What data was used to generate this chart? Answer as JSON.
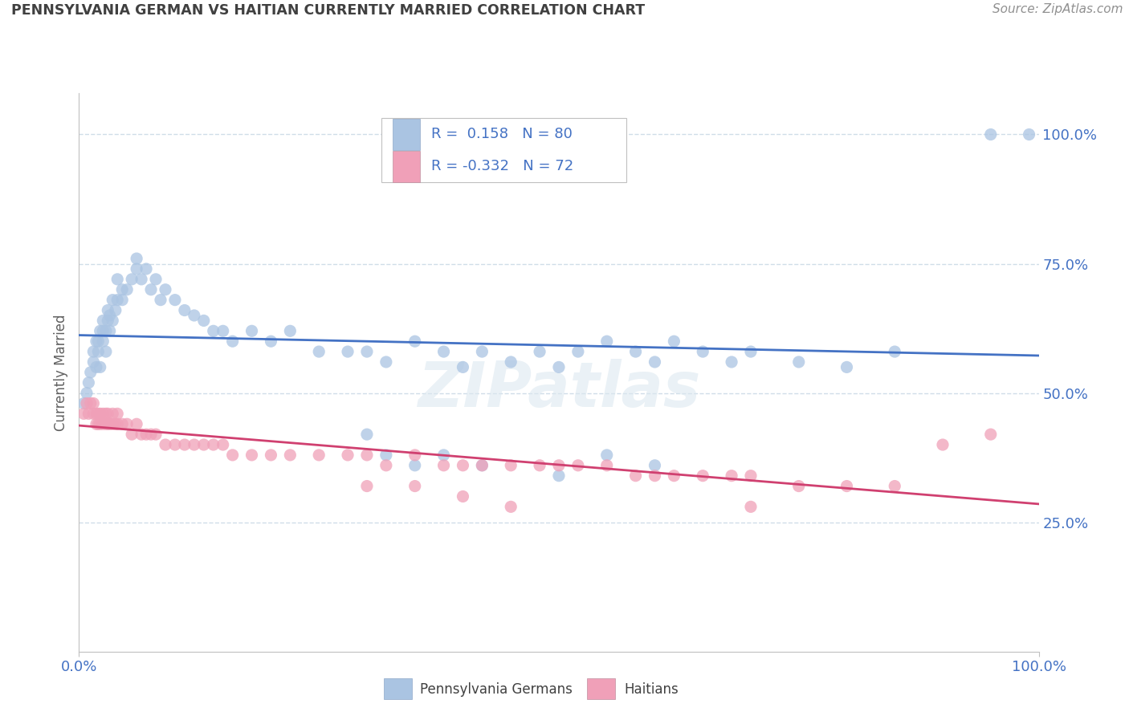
{
  "title": "PENNSYLVANIA GERMAN VS HAITIAN CURRENTLY MARRIED CORRELATION CHART",
  "source": "Source: ZipAtlas.com",
  "ylabel": "Currently Married",
  "blue_label": "Pennsylvania Germans",
  "pink_label": "Haitians",
  "blue_R": 0.158,
  "blue_N": 80,
  "pink_R": -0.332,
  "pink_N": 72,
  "blue_color": "#aac4e2",
  "pink_color": "#f0a0b8",
  "blue_line_color": "#4472c4",
  "pink_line_color": "#d04070",
  "title_color": "#404040",
  "source_color": "#909090",
  "axis_tick_color": "#4472c4",
  "grid_color": "#d0dde8",
  "ytick_labels": [
    "25.0%",
    "50.0%",
    "75.0%",
    "100.0%"
  ],
  "ytick_positions": [
    0.25,
    0.5,
    0.75,
    1.0
  ],
  "blue_scatter_x": [
    0.005,
    0.008,
    0.01,
    0.012,
    0.015,
    0.015,
    0.018,
    0.018,
    0.02,
    0.02,
    0.022,
    0.022,
    0.025,
    0.025,
    0.025,
    0.028,
    0.028,
    0.03,
    0.03,
    0.032,
    0.032,
    0.035,
    0.035,
    0.038,
    0.04,
    0.04,
    0.045,
    0.045,
    0.05,
    0.055,
    0.06,
    0.06,
    0.065,
    0.07,
    0.075,
    0.08,
    0.085,
    0.09,
    0.1,
    0.11,
    0.12,
    0.13,
    0.14,
    0.15,
    0.16,
    0.18,
    0.2,
    0.22,
    0.25,
    0.28,
    0.3,
    0.32,
    0.35,
    0.38,
    0.4,
    0.42,
    0.45,
    0.48,
    0.5,
    0.52,
    0.55,
    0.58,
    0.6,
    0.62,
    0.65,
    0.68,
    0.7,
    0.75,
    0.8,
    0.85,
    0.3,
    0.32,
    0.35,
    0.38,
    0.42,
    0.5,
    0.55,
    0.6,
    0.95,
    0.99
  ],
  "blue_scatter_y": [
    0.48,
    0.5,
    0.52,
    0.54,
    0.56,
    0.58,
    0.55,
    0.6,
    0.58,
    0.6,
    0.55,
    0.62,
    0.6,
    0.62,
    0.64,
    0.58,
    0.62,
    0.64,
    0.66,
    0.62,
    0.65,
    0.64,
    0.68,
    0.66,
    0.68,
    0.72,
    0.68,
    0.7,
    0.7,
    0.72,
    0.74,
    0.76,
    0.72,
    0.74,
    0.7,
    0.72,
    0.68,
    0.7,
    0.68,
    0.66,
    0.65,
    0.64,
    0.62,
    0.62,
    0.6,
    0.62,
    0.6,
    0.62,
    0.58,
    0.58,
    0.58,
    0.56,
    0.6,
    0.58,
    0.55,
    0.58,
    0.56,
    0.58,
    0.55,
    0.58,
    0.6,
    0.58,
    0.56,
    0.6,
    0.58,
    0.56,
    0.58,
    0.56,
    0.55,
    0.58,
    0.42,
    0.38,
    0.36,
    0.38,
    0.36,
    0.34,
    0.38,
    0.36,
    1.0,
    1.0
  ],
  "pink_scatter_x": [
    0.005,
    0.008,
    0.01,
    0.012,
    0.015,
    0.015,
    0.018,
    0.018,
    0.02,
    0.02,
    0.022,
    0.022,
    0.025,
    0.025,
    0.028,
    0.028,
    0.03,
    0.03,
    0.032,
    0.035,
    0.035,
    0.038,
    0.04,
    0.04,
    0.045,
    0.05,
    0.055,
    0.06,
    0.065,
    0.07,
    0.075,
    0.08,
    0.09,
    0.1,
    0.11,
    0.12,
    0.13,
    0.14,
    0.15,
    0.16,
    0.18,
    0.2,
    0.22,
    0.25,
    0.28,
    0.3,
    0.32,
    0.35,
    0.38,
    0.4,
    0.42,
    0.45,
    0.48,
    0.5,
    0.52,
    0.55,
    0.58,
    0.6,
    0.62,
    0.65,
    0.68,
    0.7,
    0.75,
    0.8,
    0.85,
    0.3,
    0.35,
    0.4,
    0.45,
    0.7,
    0.9,
    0.95
  ],
  "pink_scatter_y": [
    0.46,
    0.48,
    0.46,
    0.48,
    0.46,
    0.48,
    0.44,
    0.46,
    0.44,
    0.46,
    0.44,
    0.46,
    0.44,
    0.46,
    0.44,
    0.46,
    0.44,
    0.46,
    0.44,
    0.44,
    0.46,
    0.44,
    0.44,
    0.46,
    0.44,
    0.44,
    0.42,
    0.44,
    0.42,
    0.42,
    0.42,
    0.42,
    0.4,
    0.4,
    0.4,
    0.4,
    0.4,
    0.4,
    0.4,
    0.38,
    0.38,
    0.38,
    0.38,
    0.38,
    0.38,
    0.38,
    0.36,
    0.38,
    0.36,
    0.36,
    0.36,
    0.36,
    0.36,
    0.36,
    0.36,
    0.36,
    0.34,
    0.34,
    0.34,
    0.34,
    0.34,
    0.34,
    0.32,
    0.32,
    0.32,
    0.32,
    0.32,
    0.3,
    0.28,
    0.28,
    0.4,
    0.42
  ]
}
